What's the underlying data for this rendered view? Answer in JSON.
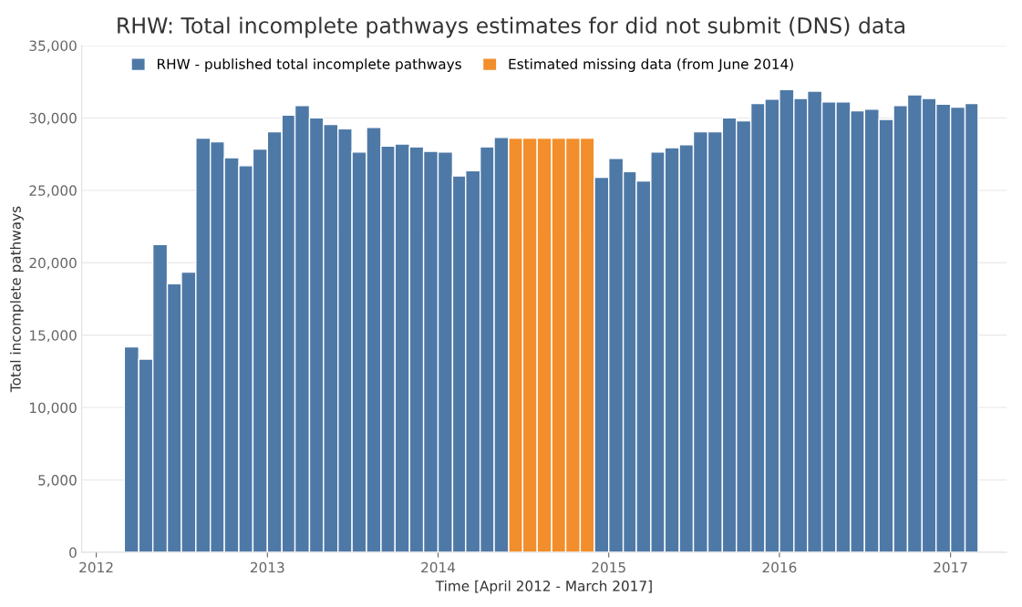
{
  "chart_data": {
    "type": "bar",
    "title": "RHW: Total incomplete pathways estimates for did not submit (DNS) data",
    "xlabel": "Time [April 2012 - March 2017]",
    "ylabel": "Total incomplete pathways",
    "x": [
      "2012-03",
      "2012-04",
      "2012-05",
      "2012-06",
      "2012-07",
      "2012-08",
      "2012-09",
      "2012-10",
      "2012-11",
      "2012-12",
      "2013-01",
      "2013-02",
      "2013-03",
      "2013-04",
      "2013-05",
      "2013-06",
      "2013-07",
      "2013-08",
      "2013-09",
      "2013-10",
      "2013-11",
      "2013-12",
      "2014-01",
      "2014-02",
      "2014-03",
      "2014-04",
      "2014-05",
      "2014-06",
      "2014-07",
      "2014-08",
      "2014-09",
      "2014-10",
      "2014-11",
      "2014-12",
      "2015-01",
      "2015-02",
      "2015-03",
      "2015-04",
      "2015-05",
      "2015-06",
      "2015-07",
      "2015-08",
      "2015-09",
      "2015-10",
      "2015-11",
      "2015-12",
      "2016-01",
      "2016-02",
      "2016-03",
      "2016-04",
      "2016-05",
      "2016-06",
      "2016-07",
      "2016-08",
      "2016-09",
      "2016-10",
      "2016-11",
      "2016-12",
      "2017-01",
      "2017-02"
    ],
    "series": [
      {
        "name": "RHW - published total incomplete pathways",
        "color": "#4e79a7",
        "values": [
          14200,
          13350,
          21250,
          18550,
          19350,
          28600,
          28350,
          27250,
          26700,
          27850,
          29050,
          30200,
          30850,
          30000,
          29550,
          29250,
          27650,
          29350,
          28050,
          28200,
          28000,
          27700,
          27650,
          26000,
          26350,
          28000,
          28650,
          null,
          null,
          null,
          null,
          null,
          null,
          25900,
          27200,
          26300,
          25650,
          27650,
          27950,
          28150,
          29050,
          29050,
          30000,
          29800,
          31000,
          31300,
          31950,
          31350,
          31850,
          31100,
          31100,
          30500,
          30600,
          29900,
          30850,
          31600,
          31350,
          30950,
          30750,
          31000
        ]
      },
      {
        "name": "Estimated missing data (from June 2014)",
        "color": "#f28e2b",
        "values": [
          null,
          null,
          null,
          null,
          null,
          null,
          null,
          null,
          null,
          null,
          null,
          null,
          null,
          null,
          null,
          null,
          null,
          null,
          null,
          null,
          null,
          null,
          null,
          null,
          null,
          null,
          null,
          28600,
          28600,
          28600,
          28600,
          28600,
          28600,
          null,
          null,
          null,
          null,
          null,
          null,
          null,
          null,
          null,
          null,
          null,
          null,
          null,
          null,
          null,
          null,
          null,
          null,
          null,
          null,
          null,
          null,
          null,
          null,
          null,
          null,
          null
        ]
      }
    ],
    "xlim": [
      "2011-12",
      "2017-05"
    ],
    "xticks": [
      "2012",
      "2013",
      "2014",
      "2015",
      "2016",
      "2017"
    ],
    "ylim": [
      0,
      35000
    ],
    "yticks": [
      {
        "value": 0,
        "label": "0"
      },
      {
        "value": 5000,
        "label": "5,000"
      },
      {
        "value": 10000,
        "label": "10,000"
      },
      {
        "value": 15000,
        "label": "15,000"
      },
      {
        "value": 20000,
        "label": "20,000"
      },
      {
        "value": 25000,
        "label": "25,000"
      },
      {
        "value": 30000,
        "label": "30,000"
      },
      {
        "value": 35000,
        "label": "35,000"
      }
    ],
    "grid": "y",
    "legend": "top left"
  }
}
